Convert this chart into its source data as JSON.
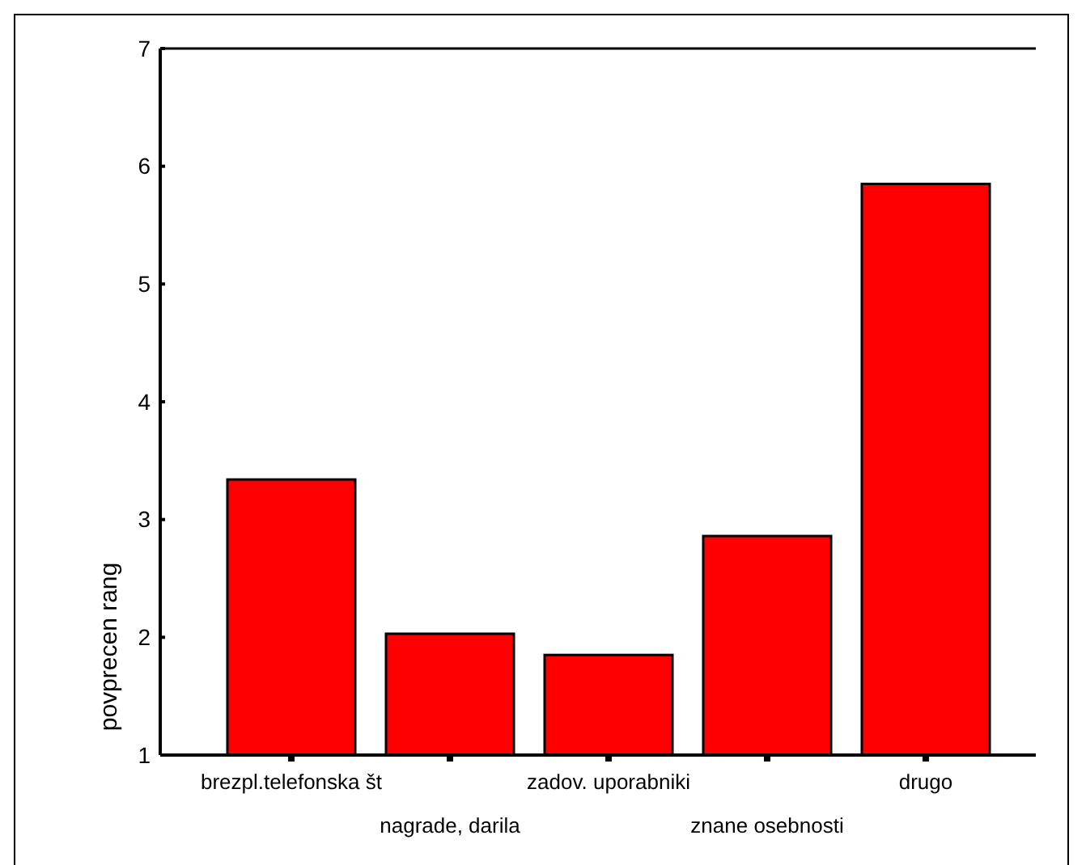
{
  "chart_data": {
    "type": "bar",
    "ylabel": "povprecen rang",
    "categories": [
      "brezpl.telefonska št",
      "nagrade, darila",
      "zadov. uporabniki",
      "znane osebnosti",
      "drugo"
    ],
    "values": [
      3.34,
      2.03,
      1.85,
      2.86,
      5.85
    ],
    "color": "#ff0000",
    "ylim": [
      1,
      7
    ],
    "yticks": [
      1,
      2,
      3,
      4,
      5,
      6,
      7
    ],
    "grid": false
  }
}
